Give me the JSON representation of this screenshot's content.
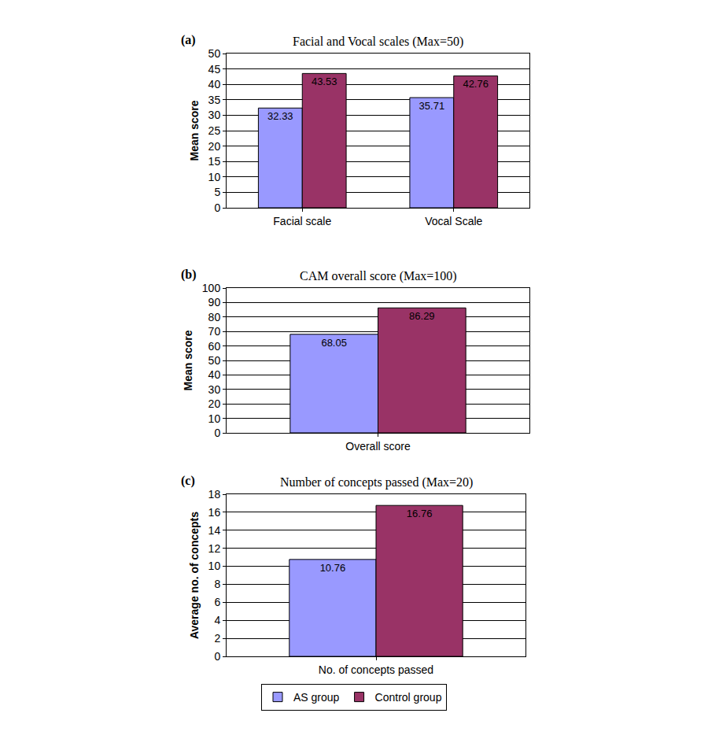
{
  "chart_data": [
    {
      "type": "bar",
      "annotation": "(a)",
      "title": "Facial and Vocal scales (Max=50)",
      "ylabel": "Mean score",
      "categories": [
        "Facial scale",
        "Vocal Scale"
      ],
      "series": [
        {
          "name": "AS group",
          "color": "#9999ff",
          "values": [
            32.33,
            35.71
          ]
        },
        {
          "name": "Control group",
          "color": "#993366",
          "values": [
            43.53,
            42.76
          ]
        }
      ],
      "ylim": [
        0,
        50
      ],
      "yticks": [
        0,
        5,
        10,
        15,
        20,
        25,
        30,
        35,
        40,
        45,
        50
      ],
      "grid": true,
      "data_labels": true
    },
    {
      "type": "bar",
      "annotation": "(b)",
      "title": "CAM overall score (Max=100)",
      "ylabel": "Mean score",
      "categories": [
        "Overall score"
      ],
      "series": [
        {
          "name": "AS group",
          "color": "#9999ff",
          "values": [
            68.05
          ]
        },
        {
          "name": "Control group",
          "color": "#993366",
          "values": [
            86.29
          ]
        }
      ],
      "ylim": [
        0,
        100
      ],
      "yticks": [
        0,
        10,
        20,
        30,
        40,
        50,
        60,
        70,
        80,
        90,
        100
      ],
      "grid": true,
      "data_labels": true
    },
    {
      "type": "bar",
      "annotation": "(c)",
      "title": "Number of concepts passed (Max=20)",
      "ylabel": "Average no. of concepts",
      "categories": [
        "No. of concepts passed"
      ],
      "series": [
        {
          "name": "AS group",
          "color": "#9999ff",
          "values": [
            10.76
          ]
        },
        {
          "name": "Control group",
          "color": "#993366",
          "values": [
            16.76
          ]
        }
      ],
      "ylim": [
        0,
        18
      ],
      "yticks": [
        0,
        2,
        4,
        6,
        8,
        10,
        12,
        14,
        16,
        18
      ],
      "grid": true,
      "data_labels": true,
      "legend": "bottom"
    }
  ]
}
